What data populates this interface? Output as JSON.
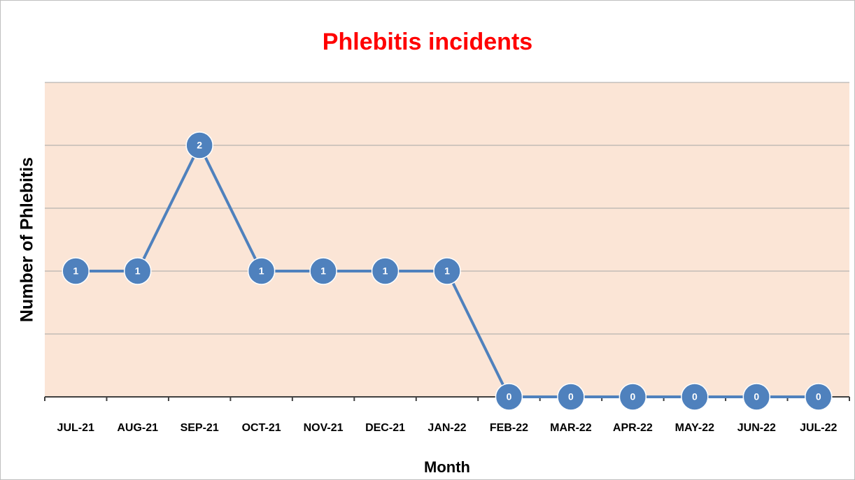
{
  "chart_data": {
    "type": "line",
    "title": "Phlebitis incidents",
    "x_label": "Month",
    "y_label": "Number of Phlebitis",
    "categories": [
      "JUL-21",
      "AUG-21",
      "SEP-21",
      "OCT-21",
      "NOV-21",
      "DEC-21",
      "JAN-22",
      "FEB-22",
      "MAR-22",
      "APR-22",
      "MAY-22",
      "JUN-22",
      "JUL-22"
    ],
    "series": [
      {
        "name": "Number of Phlebitis",
        "color": "#4f81bd",
        "values": [
          1,
          1,
          2,
          1,
          1,
          1,
          1,
          0,
          0,
          0,
          0,
          0,
          0
        ]
      }
    ],
    "ylim": [
      0,
      2.5
    ],
    "yticks": [
      0,
      0.5,
      1,
      1.5,
      2,
      2.5
    ],
    "grid": true
  }
}
